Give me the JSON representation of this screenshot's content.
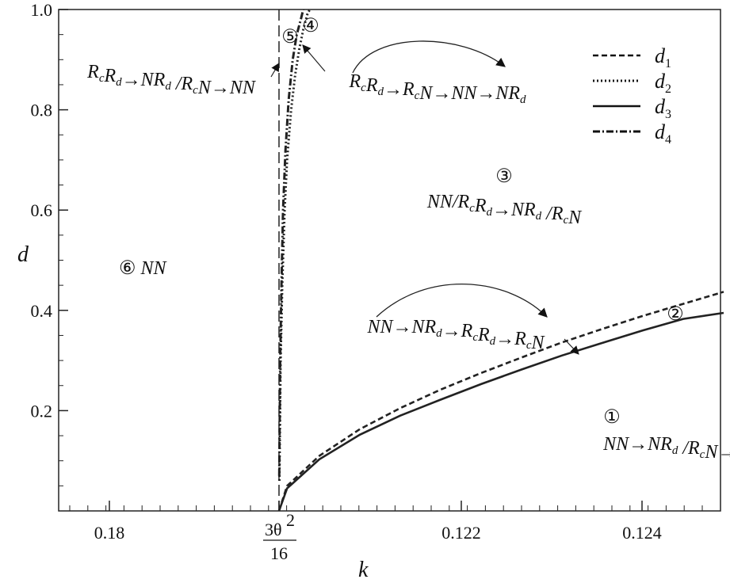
{
  "chart_data": {
    "type": "line",
    "xlabel": "k",
    "ylabel": "d",
    "ylim": [
      0,
      1.0
    ],
    "x_ticks": [
      {
        "label": "0.18"
      },
      {
        "label": "3θ²/16",
        "numerator": "3θ",
        "sup": "2",
        "denominator": "16"
      },
      {
        "label": "0.122"
      },
      {
        "label": "0.124"
      }
    ],
    "y_ticks": [
      "0.2",
      "0.4",
      "0.6",
      "0.8",
      "1.0"
    ],
    "grid": false,
    "legend_position": "top-right",
    "series": [
      {
        "name": "d",
        "sub": "1",
        "style": "dashed",
        "points": [
          [
            0,
            0
          ],
          [
            0.1,
            0.05
          ],
          [
            0.5,
            0.11
          ],
          [
            1.0,
            0.163
          ],
          [
            1.5,
            0.205
          ],
          [
            2.0,
            0.242
          ],
          [
            2.5,
            0.275
          ],
          [
            3.0,
            0.306
          ],
          [
            3.5,
            0.336
          ],
          [
            4.0,
            0.363
          ],
          [
            4.5,
            0.389
          ],
          [
            5.0,
            0.413
          ],
          [
            5.5,
            0.437
          ]
        ]
      },
      {
        "name": "d",
        "sub": "2",
        "style": "dotted",
        "points": [
          [
            0.005,
            0.06
          ],
          [
            0.02,
            0.3
          ],
          [
            0.04,
            0.45
          ],
          [
            0.07,
            0.6
          ],
          [
            0.1,
            0.7
          ],
          [
            0.15,
            0.8
          ],
          [
            0.2,
            0.87
          ],
          [
            0.25,
            0.92
          ],
          [
            0.3,
            0.96
          ],
          [
            0.35,
            0.99
          ],
          [
            0.38,
            1.0
          ]
        ]
      },
      {
        "name": "d",
        "sub": "3",
        "style": "solid",
        "points": [
          [
            0,
            0
          ],
          [
            0.1,
            0.045
          ],
          [
            0.5,
            0.103
          ],
          [
            1.0,
            0.152
          ],
          [
            1.5,
            0.19
          ],
          [
            2.0,
            0.222
          ],
          [
            2.5,
            0.253
          ],
          [
            3.0,
            0.282
          ],
          [
            3.5,
            0.31
          ],
          [
            4.0,
            0.335
          ],
          [
            4.5,
            0.36
          ],
          [
            5.0,
            0.383
          ],
          [
            5.5,
            0.395
          ]
        ]
      },
      {
        "name": "d",
        "sub": "4",
        "style": "dash-dot",
        "points": [
          [
            0.003,
            0.07
          ],
          [
            0.015,
            0.3
          ],
          [
            0.03,
            0.45
          ],
          [
            0.05,
            0.6
          ],
          [
            0.08,
            0.72
          ],
          [
            0.12,
            0.82
          ],
          [
            0.17,
            0.9
          ],
          [
            0.22,
            0.95
          ],
          [
            0.27,
            0.98
          ],
          [
            0.3,
            1.0
          ]
        ]
      }
    ],
    "annotations": {
      "r1": {
        "num": "①",
        "line": [
          [
            "NN",
            ""
          ],
          [
            "→",
            ""
          ],
          [
            "NR",
            "d"
          ],
          [
            " /R",
            "c"
          ],
          [
            "N",
            ""
          ],
          [
            "→",
            ""
          ],
          [
            "R",
            "c"
          ],
          [
            "R",
            "d"
          ]
        ]
      },
      "r2": {
        "num": "②"
      },
      "r2_text": {
        "line": [
          [
            "NN",
            ""
          ],
          [
            "→",
            ""
          ],
          [
            "NR",
            "d"
          ],
          [
            "→",
            ""
          ],
          [
            "R",
            "c"
          ],
          [
            "R",
            "d"
          ],
          [
            "→",
            ""
          ],
          [
            "R",
            "c"
          ],
          [
            "N",
            ""
          ]
        ]
      },
      "r3": {
        "num": "③",
        "line": [
          [
            "NN/R",
            "c"
          ],
          [
            "R",
            "d"
          ],
          [
            "→",
            ""
          ],
          [
            "NR",
            "d"
          ],
          [
            " /R",
            "c"
          ],
          [
            "N",
            ""
          ]
        ]
      },
      "r4": {
        "num": "④"
      },
      "r4_text": {
        "line": [
          [
            "R",
            "c"
          ],
          [
            "R",
            "d"
          ],
          [
            "→",
            ""
          ],
          [
            "R",
            "c"
          ],
          [
            "N",
            ""
          ],
          [
            "→",
            ""
          ],
          [
            "NN",
            ""
          ],
          [
            "→",
            ""
          ],
          [
            "NR",
            "d"
          ]
        ]
      },
      "r5": {
        "num": "⑤",
        "line": [
          [
            "R",
            "c"
          ],
          [
            "R",
            "d"
          ],
          [
            "→",
            ""
          ],
          [
            "NR",
            "d"
          ],
          [
            " /R",
            "c"
          ],
          [
            "N",
            ""
          ],
          [
            "→",
            ""
          ],
          [
            "NN",
            ""
          ]
        ]
      },
      "r6": {
        "num": "⑥",
        "text": "NN"
      }
    }
  }
}
